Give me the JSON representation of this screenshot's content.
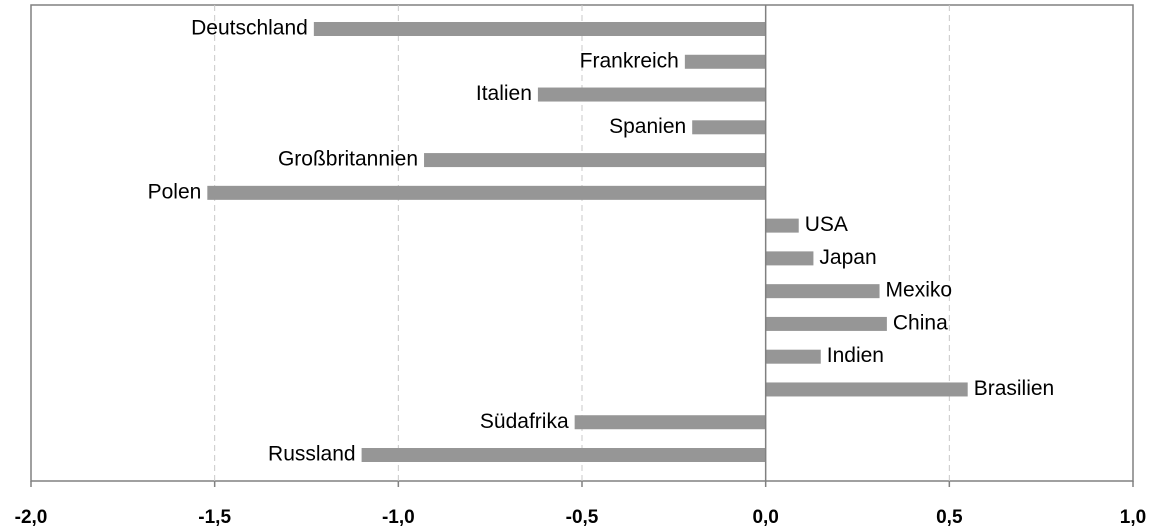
{
  "chart_data": {
    "type": "bar",
    "orientation": "horizontal",
    "categories": [
      "Deutschland",
      "Frankreich",
      "Italien",
      "Spanien",
      "Großbritannien",
      "Polen",
      "USA",
      "Japan",
      "Mexiko",
      "China",
      "Indien",
      "Brasilien",
      "Südafrika",
      "Russland"
    ],
    "values": [
      -1.23,
      -0.22,
      -0.62,
      -0.2,
      -0.93,
      -1.52,
      0.09,
      0.13,
      0.31,
      0.33,
      0.15,
      0.55,
      -0.52,
      -1.1
    ],
    "color": "#969696",
    "xlim": [
      -2,
      1
    ],
    "xticks": [
      {
        "value": -2,
        "label": "-2,0"
      },
      {
        "value": -1.5,
        "label": "-1,5"
      },
      {
        "value": -1,
        "label": "-1,0"
      },
      {
        "value": -0.5,
        "label": "-0,5"
      },
      {
        "value": 0,
        "label": "0,0"
      },
      {
        "value": 0.5,
        "label": "0,5"
      },
      {
        "value": 1,
        "label": "1,0"
      }
    ],
    "grid": true
  }
}
